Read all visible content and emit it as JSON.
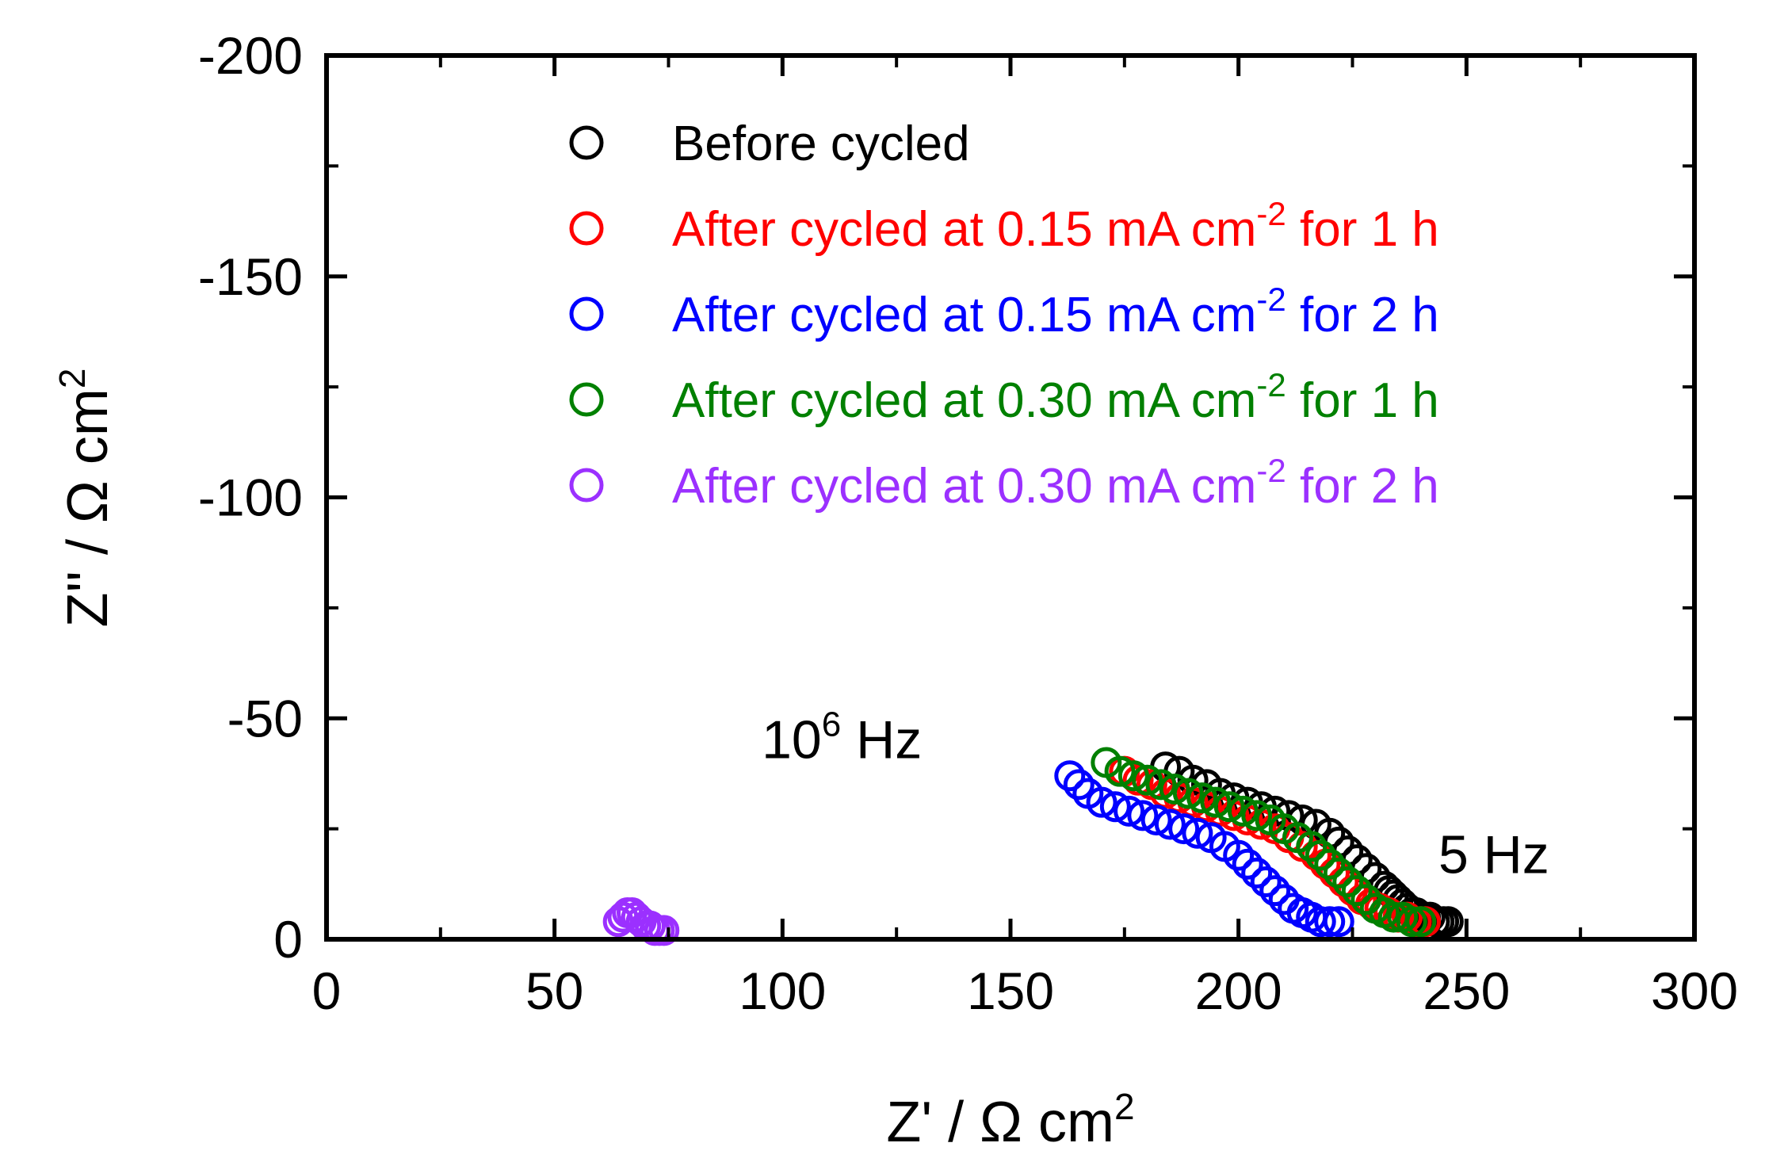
{
  "chart_data": {
    "type": "scatter",
    "title": "",
    "xlabel": {
      "main": "Z' / Ω cm",
      "sup": "2"
    },
    "ylabel": {
      "main": "Z'' / Ω cm",
      "sup": "2"
    },
    "xlim": [
      0,
      300
    ],
    "ylim": [
      0,
      -200
    ],
    "xticks": [
      0,
      50,
      100,
      150,
      200,
      250,
      300
    ],
    "yticks": [
      0,
      -50,
      -100,
      -150,
      -200
    ],
    "xtick_labels": [
      "0",
      "50",
      "100",
      "150",
      "200",
      "250",
      "300"
    ],
    "ytick_labels": [
      "0",
      "-50",
      "-100",
      "-150",
      "-200"
    ],
    "grid": false,
    "legend_position": "top-right",
    "marker": "open-circle",
    "series": [
      {
        "name": "Before cycled",
        "label_parts": [
          "Before cycled"
        ],
        "color": "#000000",
        "x": [
          184,
          187,
          190,
          193,
          196,
          199,
          202,
          205,
          208,
          211,
          214,
          217,
          220,
          222,
          224,
          226,
          228,
          230,
          232,
          233,
          234,
          235,
          236,
          237,
          238,
          239,
          240,
          241,
          242,
          243,
          244,
          245,
          246
        ],
        "y": [
          -39,
          -38,
          -36,
          -35,
          -33,
          -32,
          -31,
          -30,
          -29,
          -28,
          -27,
          -26,
          -24,
          -22,
          -20,
          -18,
          -16,
          -14,
          -12,
          -11,
          -10,
          -9,
          -8,
          -7,
          -6,
          -6,
          -5,
          -5,
          -5,
          -4,
          -4,
          -4,
          -4
        ]
      },
      {
        "name": "After cycled at 0.15 mA cm-2 for 1 h",
        "label_parts": [
          "After cycled at 0.15 mA cm",
          "-2",
          " for 1 h"
        ],
        "color": "#ff0000",
        "x": [
          175,
          178,
          181,
          184,
          187,
          190,
          193,
          196,
          199,
          202,
          205,
          208,
          211,
          214,
          217,
          219,
          221,
          223,
          225,
          227,
          229,
          231,
          233,
          235,
          237,
          239,
          240,
          241
        ],
        "y": [
          -38,
          -36,
          -35,
          -33,
          -32,
          -31,
          -30,
          -29,
          -28,
          -27,
          -26,
          -25,
          -23,
          -21,
          -19,
          -17,
          -15,
          -13,
          -11,
          -9,
          -8,
          -7,
          -6,
          -5,
          -5,
          -4,
          -4,
          -4
        ]
      },
      {
        "name": "After cycled at 0.15 mA cm-2 for 2 h",
        "label_parts": [
          "After cycled at 0.15 mA cm",
          "-2",
          " for 2 h"
        ],
        "color": "#0000ff",
        "x": [
          163,
          165,
          167,
          170,
          173,
          176,
          179,
          182,
          185,
          188,
          191,
          194,
          197,
          200,
          202,
          204,
          206,
          208,
          210,
          212,
          214,
          216,
          218,
          220,
          222
        ],
        "y": [
          -37,
          -35,
          -33,
          -31,
          -30,
          -29,
          -28,
          -27,
          -26,
          -25,
          -24,
          -23,
          -21,
          -19,
          -17,
          -15,
          -13,
          -11,
          -9,
          -7,
          -6,
          -5,
          -4,
          -4,
          -4
        ]
      },
      {
        "name": "After cycled at 0.30 mA cm-2 for 1 h",
        "label_parts": [
          "After cycled at 0.30 mA cm",
          "-2",
          " for 1 h"
        ],
        "color": "#008000",
        "x": [
          171,
          174,
          177,
          180,
          183,
          186,
          189,
          192,
          195,
          198,
          201,
          204,
          207,
          210,
          213,
          216,
          218,
          220,
          222,
          224,
          226,
          228,
          230,
          232,
          234,
          236,
          238,
          240
        ],
        "y": [
          -40,
          -38,
          -37,
          -36,
          -35,
          -34,
          -33,
          -32,
          -31,
          -30,
          -29,
          -28,
          -27,
          -25,
          -23,
          -21,
          -19,
          -17,
          -15,
          -13,
          -11,
          -9,
          -7,
          -6,
          -5,
          -5,
          -4,
          -4
        ]
      },
      {
        "name": "After cycled at 0.30 mA cm-2 for 2 h",
        "label_parts": [
          "After cycled at 0.30 mA cm",
          "-2",
          " for 2 h"
        ],
        "color": "#9b30ff",
        "x": [
          64,
          65,
          66,
          67,
          68,
          69,
          70,
          71,
          72,
          73,
          74
        ],
        "y": [
          -4,
          -5,
          -6,
          -6,
          -5,
          -4,
          -3,
          -3,
          -2,
          -2,
          -2
        ]
      }
    ],
    "annotations": [
      {
        "text": "10",
        "sup": "6",
        "suffix": " Hz",
        "x": 113,
        "y": -41
      },
      {
        "text": "5 Hz",
        "x": 256,
        "y": -15
      }
    ]
  }
}
